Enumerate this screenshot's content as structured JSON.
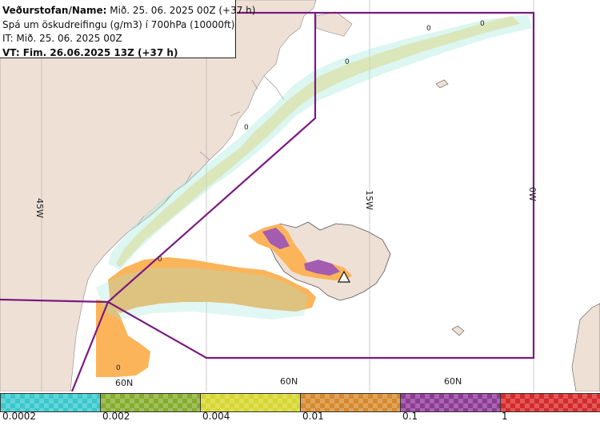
{
  "info": {
    "line1_label": "Veðurstofan/Name:",
    "line1_value": " Mið. 25. 06. 2025 00Z (+37 h)",
    "line2": "Spá um öskudreifingu (g/m3) í 700hPa (10000ft)",
    "line3": "IT: Mið. 25. 06. 2025 00Z",
    "line4": "VT: Fim. 26.06.2025 13Z (+37 h)"
  },
  "map": {
    "lon_labels": [
      "45W",
      "15W",
      "0W"
    ],
    "lat_labels": [
      "60N",
      "60N",
      "60N"
    ],
    "zero_labels": [
      "0",
      "0",
      "0",
      "0",
      "0",
      "0"
    ],
    "colors": {
      "land": "#efe0d6",
      "fir_boundary": "#7a1a82",
      "graticule": "#aaaaaa",
      "ash_low": "#fbb45a",
      "ash_high": "#a35cb0"
    }
  },
  "legend": {
    "labels": [
      "0.0002",
      "0.002",
      "0.004",
      "0.01",
      "0.1",
      "1"
    ],
    "colors": [
      "#38c8cc",
      "#86ad2e",
      "#d6d62e",
      "#d68a2e",
      "#8e3b96",
      "#d62a2a"
    ]
  }
}
